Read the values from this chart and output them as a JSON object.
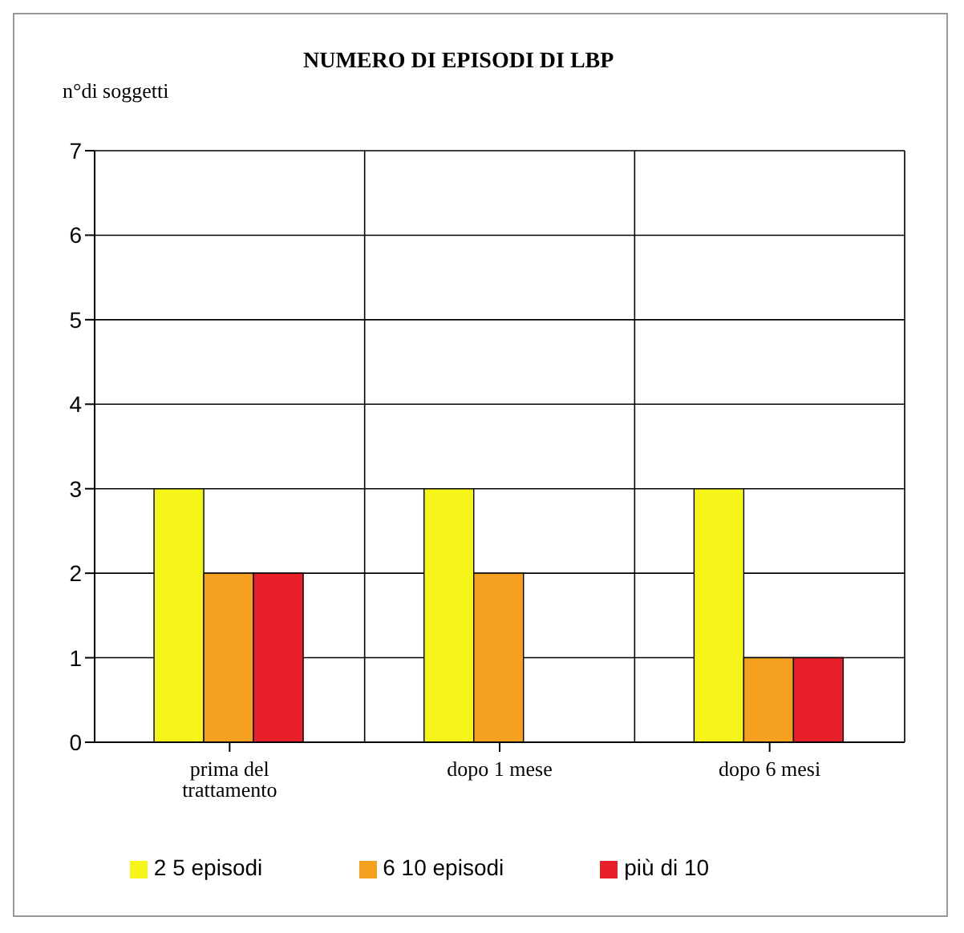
{
  "chart_data": {
    "type": "bar",
    "title": "NUMERO DI EPISODI DI LBP",
    "ylabel": "n°di soggetti",
    "categories": [
      "prima del trattamento",
      "dopo 1 mese",
      "dopo 6 mesi"
    ],
    "series": [
      {
        "name": "2 5 episodi",
        "color": "#f5f51a",
        "values": [
          3,
          3,
          3
        ]
      },
      {
        "name": "6 10 episodi",
        "color": "#f5a01e",
        "values": [
          2,
          2,
          1
        ]
      },
      {
        "name": "più di 10",
        "color": "#e8202a",
        "values": [
          2,
          0,
          1
        ]
      }
    ],
    "ylim": [
      0,
      7
    ],
    "yticks": [
      0,
      1,
      2,
      3,
      4,
      5,
      6,
      7
    ],
    "grid": true,
    "legend": "bottom"
  }
}
